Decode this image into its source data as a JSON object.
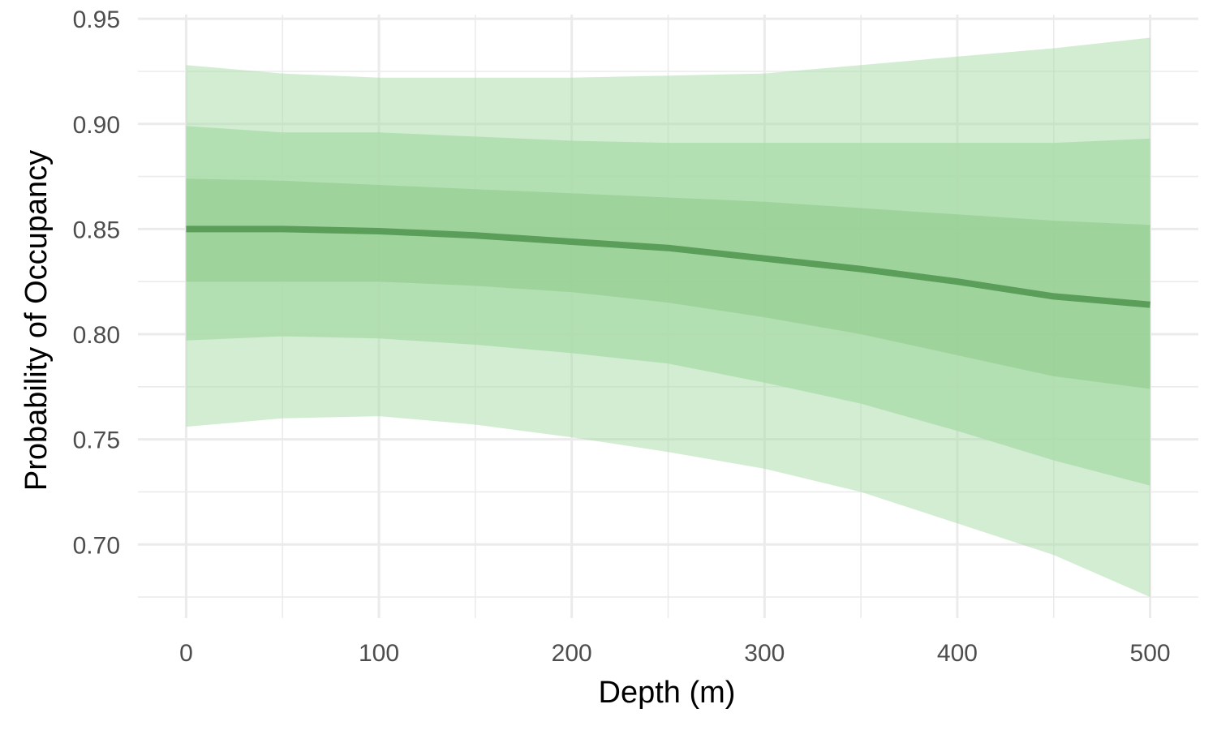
{
  "chart_data": {
    "type": "area",
    "xlabel": "Depth (m)",
    "ylabel": "Probability of Occupancy",
    "xlim": [
      -25,
      525
    ],
    "ylim": [
      0.665,
      0.952
    ],
    "x_ticks": [
      0,
      100,
      200,
      300,
      400,
      500
    ],
    "x_tick_labels": [
      "0",
      "100",
      "200",
      "300",
      "400",
      "500"
    ],
    "y_ticks": [
      0.7,
      0.75,
      0.8,
      0.85,
      0.9,
      0.95
    ],
    "y_tick_labels": [
      "0.70",
      "0.75",
      "0.80",
      "0.85",
      "0.90",
      "0.95"
    ],
    "grid": true,
    "legend": "none",
    "x": [
      0,
      50,
      100,
      150,
      200,
      250,
      300,
      350,
      400,
      450,
      500
    ],
    "median": [
      0.85,
      0.85,
      0.849,
      0.847,
      0.844,
      0.841,
      0.836,
      0.831,
      0.825,
      0.818,
      0.814
    ],
    "bands": [
      {
        "level": "outer",
        "color": "#a8dba8",
        "opacity": 0.5,
        "lower": [
          0.756,
          0.76,
          0.761,
          0.757,
          0.751,
          0.744,
          0.736,
          0.725,
          0.71,
          0.695,
          0.675
        ],
        "upper": [
          0.928,
          0.924,
          0.922,
          0.922,
          0.922,
          0.923,
          0.924,
          0.928,
          0.932,
          0.936,
          0.941
        ]
      },
      {
        "level": "middle",
        "color": "#a8dba8",
        "opacity": 0.75,
        "lower": [
          0.797,
          0.799,
          0.798,
          0.795,
          0.791,
          0.786,
          0.777,
          0.767,
          0.754,
          0.74,
          0.728
        ],
        "upper": [
          0.899,
          0.896,
          0.896,
          0.894,
          0.892,
          0.891,
          0.891,
          0.891,
          0.891,
          0.891,
          0.893
        ]
      },
      {
        "level": "inner",
        "color": "#8fcc8a",
        "opacity": 0.6,
        "lower": [
          0.825,
          0.825,
          0.825,
          0.823,
          0.82,
          0.815,
          0.808,
          0.8,
          0.79,
          0.78,
          0.774
        ],
        "upper": [
          0.874,
          0.873,
          0.871,
          0.869,
          0.867,
          0.865,
          0.863,
          0.86,
          0.857,
          0.854,
          0.852
        ]
      }
    ],
    "line_color": "#5a9e5a"
  }
}
